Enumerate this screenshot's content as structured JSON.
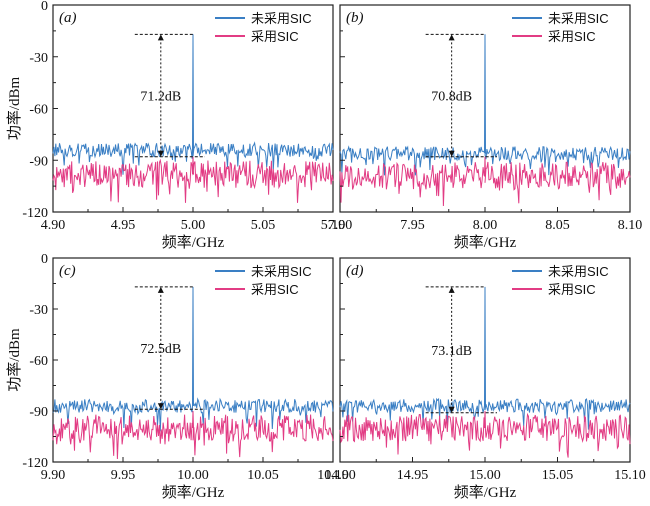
{
  "chart_data": [
    {
      "type": "line",
      "panel_label": "(a)",
      "x_ticks": [
        "4.90",
        "4.95",
        "5.00",
        "5.05",
        "5.10"
      ],
      "xlim": [
        4.9,
        5.1
      ],
      "xlabel": "频率/GHz",
      "y_ticks": [
        "0",
        "-30",
        "-60",
        "-90",
        "-120"
      ],
      "ylim": [
        -120,
        0
      ],
      "ylabel": "功率/dBm",
      "series": [
        {
          "name": "未采用SIC",
          "color": "#3a7fc4",
          "noise_floor": -84,
          "peak_x": 5.0,
          "peak_y": -17
        },
        {
          "name": "采用SIC",
          "color": "#e23c84",
          "noise_floor": -98,
          "peak_x": 5.0,
          "peak_y": -88
        }
      ],
      "annotation": {
        "text": "71.2dB",
        "top_y": -17,
        "bottom_y": -88
      },
      "legend": "top-right"
    },
    {
      "type": "line",
      "panel_label": "(b)",
      "x_ticks": [
        "7.90",
        "7.95",
        "8.00",
        "8.05",
        "8.10"
      ],
      "xlim": [
        7.9,
        8.1
      ],
      "xlabel": "频率/GHz",
      "y_ticks": [],
      "ylim": [
        -120,
        0
      ],
      "ylabel": "",
      "series": [
        {
          "name": "未采用SIC",
          "color": "#3a7fc4",
          "noise_floor": -86,
          "peak_x": 8.0,
          "peak_y": -17
        },
        {
          "name": "采用SIC",
          "color": "#e23c84",
          "noise_floor": -99,
          "peak_x": 8.0,
          "peak_y": -88
        }
      ],
      "annotation": {
        "text": "70.8dB",
        "top_y": -17,
        "bottom_y": -88
      },
      "legend": "top-right"
    },
    {
      "type": "line",
      "panel_label": "(c)",
      "x_ticks": [
        "9.90",
        "9.95",
        "10.00",
        "10.05",
        "10.10"
      ],
      "xlim": [
        9.9,
        10.1
      ],
      "xlabel": "频率/GHz",
      "y_ticks": [
        "0",
        "-30",
        "-60",
        "-90",
        "-120"
      ],
      "ylim": [
        -120,
        0
      ],
      "ylabel": "功率/dBm",
      "series": [
        {
          "name": "未采用SIC",
          "color": "#3a7fc4",
          "noise_floor": -87,
          "peak_x": 10.0,
          "peak_y": -17
        },
        {
          "name": "采用SIC",
          "color": "#e23c84",
          "noise_floor": -100,
          "peak_x": 10.0,
          "peak_y": -90
        }
      ],
      "annotation": {
        "text": "72.5dB",
        "top_y": -17,
        "bottom_y": -89
      },
      "legend": "top-right"
    },
    {
      "type": "line",
      "panel_label": "(d)",
      "x_ticks": [
        "14.90",
        "14.95",
        "15.00",
        "15.05",
        "15.10"
      ],
      "xlim": [
        14.9,
        15.1
      ],
      "xlabel": "频率/GHz",
      "y_ticks": [],
      "ylim": [
        -120,
        0
      ],
      "ylabel": "",
      "series": [
        {
          "name": "未采用SIC",
          "color": "#3a7fc4",
          "noise_floor": -87,
          "peak_x": 15.0,
          "peak_y": -17
        },
        {
          "name": "采用SIC",
          "color": "#e23c84",
          "noise_floor": -100,
          "peak_x": 15.0,
          "peak_y": -90
        }
      ],
      "annotation": {
        "text": "73.1dB",
        "top_y": -17,
        "bottom_y": -91
      },
      "legend": "top-right"
    }
  ]
}
